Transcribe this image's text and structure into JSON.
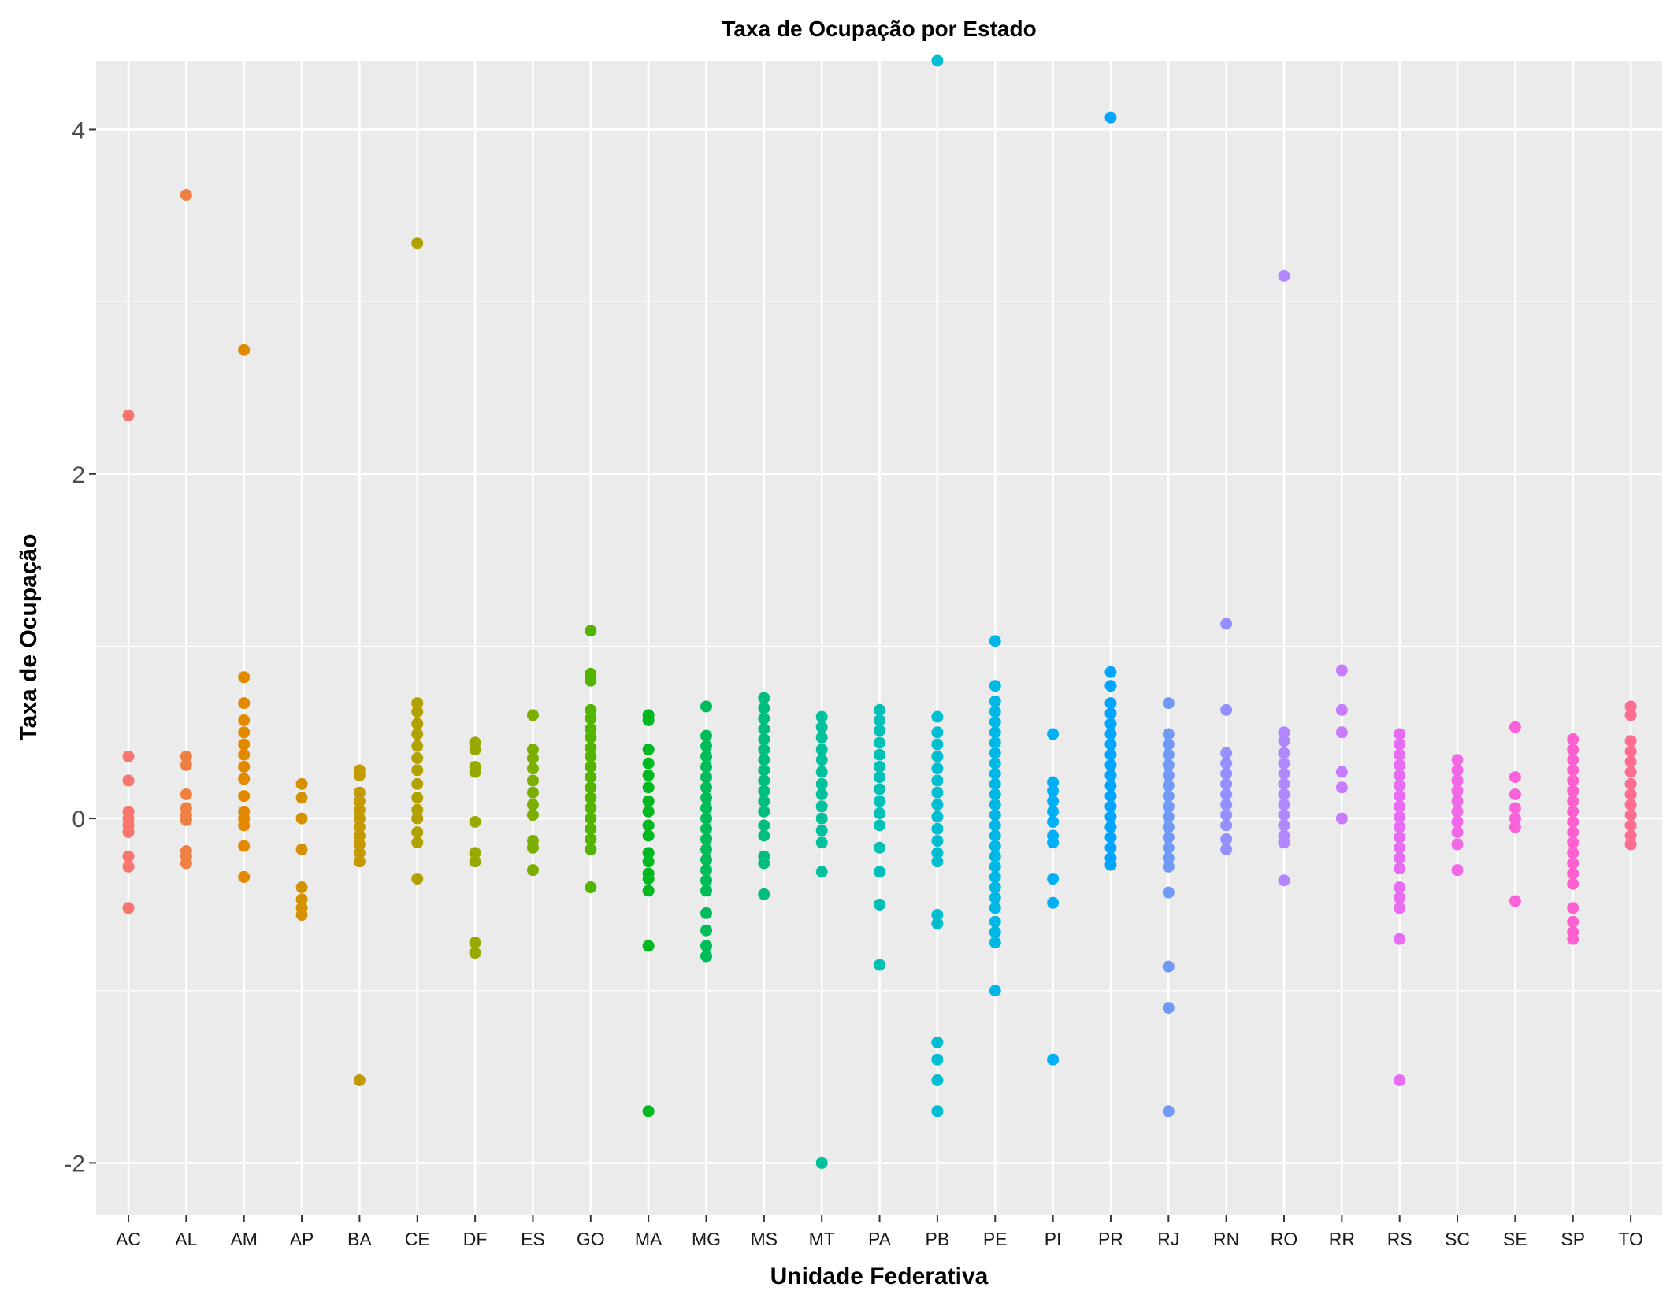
{
  "chart_data": {
    "type": "scatter",
    "title": "Taxa de Ocupação por Estado",
    "xlabel": "Unidade Federativa",
    "ylabel": "Taxa de Ocupação",
    "ylim": [
      -2.3,
      4.4
    ],
    "yticks": [
      -2,
      0,
      2,
      4
    ],
    "grid": true,
    "legend": "none",
    "background": "#ebebeb",
    "gridline_color": "#ffffff",
    "categories": [
      "AC",
      "AL",
      "AM",
      "AP",
      "BA",
      "CE",
      "DF",
      "ES",
      "GO",
      "MA",
      "MG",
      "MS",
      "MT",
      "PA",
      "PB",
      "PE",
      "PI",
      "PR",
      "RJ",
      "RN",
      "RO",
      "RR",
      "RS",
      "SC",
      "SE",
      "SP",
      "TO"
    ],
    "series": [
      {
        "category": "AC",
        "color": "#F8766D",
        "y": [
          2.34,
          0.36,
          0.22,
          0.04,
          0.0,
          -0.04,
          -0.08,
          -0.22,
          -0.28,
          -0.52
        ]
      },
      {
        "category": "AL",
        "color": "#EE8043",
        "y": [
          3.62,
          0.36,
          0.31,
          0.14,
          0.06,
          0.02,
          -0.01,
          -0.19,
          -0.22,
          -0.26
        ]
      },
      {
        "category": "AM",
        "color": "#E38900",
        "y": [
          2.72,
          0.82,
          0.67,
          0.57,
          0.5,
          0.43,
          0.37,
          0.3,
          0.23,
          0.13,
          0.04,
          0.0,
          -0.04,
          -0.16,
          -0.34
        ]
      },
      {
        "category": "AP",
        "color": "#D59100",
        "y": [
          0.2,
          0.12,
          0.0,
          -0.18,
          -0.4,
          -0.47,
          -0.52,
          -0.56
        ]
      },
      {
        "category": "BA",
        "color": "#C49A00",
        "y": [
          0.28,
          0.25,
          0.15,
          0.1,
          0.05,
          0.0,
          -0.05,
          -0.1,
          -0.15,
          -0.2,
          -0.25,
          -1.52
        ]
      },
      {
        "category": "CE",
        "color": "#B0A100",
        "y": [
          3.34,
          0.67,
          0.62,
          0.55,
          0.49,
          0.42,
          0.35,
          0.28,
          0.2,
          0.12,
          0.05,
          0.0,
          -0.08,
          -0.14,
          -0.35
        ]
      },
      {
        "category": "DF",
        "color": "#99A800",
        "y": [
          0.44,
          0.4,
          0.3,
          0.27,
          -0.02,
          -0.2,
          -0.25,
          -0.72,
          -0.78
        ]
      },
      {
        "category": "ES",
        "color": "#7CAE00",
        "y": [
          0.6,
          0.4,
          0.35,
          0.29,
          0.22,
          0.15,
          0.08,
          0.02,
          -0.13,
          -0.17,
          -0.3
        ]
      },
      {
        "category": "GO",
        "color": "#53B400",
        "y": [
          1.09,
          0.84,
          0.8,
          0.63,
          0.58,
          0.52,
          0.47,
          0.41,
          0.36,
          0.3,
          0.24,
          0.18,
          0.12,
          0.06,
          0.0,
          -0.06,
          -0.12,
          -0.18,
          -0.4
        ]
      },
      {
        "category": "MA",
        "color": "#00B81F",
        "y": [
          0.6,
          0.57,
          0.4,
          0.32,
          0.25,
          0.18,
          0.1,
          0.04,
          -0.04,
          -0.1,
          -0.2,
          -0.25,
          -0.32,
          -0.35,
          -0.42,
          -0.74,
          -1.7
        ]
      },
      {
        "category": "MG",
        "color": "#00BC59",
        "y": [
          0.65,
          0.48,
          0.42,
          0.36,
          0.3,
          0.24,
          0.18,
          0.12,
          0.06,
          0.0,
          -0.06,
          -0.12,
          -0.18,
          -0.24,
          -0.3,
          -0.36,
          -0.42,
          -0.55,
          -0.65,
          -0.74,
          -0.8
        ]
      },
      {
        "category": "MS",
        "color": "#00BF7D",
        "y": [
          0.7,
          0.64,
          0.58,
          0.52,
          0.46,
          0.4,
          0.34,
          0.28,
          0.22,
          0.16,
          0.1,
          0.04,
          -0.04,
          -0.1,
          -0.22,
          -0.26,
          -0.44
        ]
      },
      {
        "category": "MT",
        "color": "#00C19C",
        "y": [
          0.59,
          0.53,
          0.47,
          0.4,
          0.34,
          0.27,
          0.2,
          0.14,
          0.07,
          0.0,
          -0.07,
          -0.14,
          -0.31,
          -2.0
        ]
      },
      {
        "category": "PA",
        "color": "#00C0B8",
        "y": [
          0.63,
          0.57,
          0.51,
          0.44,
          0.37,
          0.3,
          0.24,
          0.17,
          0.1,
          0.03,
          -0.04,
          -0.17,
          -0.31,
          -0.5,
          -0.85
        ]
      },
      {
        "category": "PB",
        "color": "#00BDD0",
        "y": [
          4.4,
          0.59,
          0.5,
          0.43,
          0.36,
          0.29,
          0.22,
          0.15,
          0.08,
          0.01,
          -0.06,
          -0.13,
          -0.2,
          -0.25,
          -0.56,
          -0.61,
          -1.3,
          -1.4,
          -1.52,
          -1.7
        ]
      },
      {
        "category": "PE",
        "color": "#00B8E5",
        "y": [
          1.03,
          0.77,
          0.68,
          0.62,
          0.56,
          0.5,
          0.44,
          0.38,
          0.32,
          0.26,
          0.2,
          0.14,
          0.08,
          0.02,
          -0.04,
          -0.1,
          -0.16,
          -0.22,
          -0.28,
          -0.34,
          -0.4,
          -0.46,
          -0.52,
          -0.6,
          -0.66,
          -0.72,
          -1.0
        ]
      },
      {
        "category": "PI",
        "color": "#00B0F6",
        "y": [
          0.49,
          0.21,
          0.16,
          0.1,
          0.04,
          -0.02,
          -0.1,
          -0.14,
          -0.35,
          -0.49,
          -1.4
        ]
      },
      {
        "category": "PR",
        "color": "#00A5FF",
        "y": [
          4.07,
          0.85,
          0.77,
          0.67,
          0.61,
          0.55,
          0.49,
          0.43,
          0.37,
          0.31,
          0.25,
          0.19,
          0.13,
          0.07,
          0.01,
          -0.05,
          -0.11,
          -0.17,
          -0.23,
          -0.27
        ]
      },
      {
        "category": "RJ",
        "color": "#7099F8",
        "y": [
          0.67,
          0.49,
          0.43,
          0.37,
          0.31,
          0.25,
          0.19,
          0.13,
          0.07,
          0.01,
          -0.05,
          -0.11,
          -0.17,
          -0.23,
          -0.28,
          -0.43,
          -0.86,
          -1.1,
          -1.7
        ]
      },
      {
        "category": "RN",
        "color": "#9590FF",
        "y": [
          1.13,
          0.63,
          0.38,
          0.32,
          0.26,
          0.2,
          0.14,
          0.08,
          0.02,
          -0.04,
          -0.12,
          -0.18
        ]
      },
      {
        "category": "RO",
        "color": "#B186FF",
        "y": [
          3.15,
          0.5,
          0.45,
          0.38,
          0.32,
          0.26,
          0.2,
          0.14,
          0.08,
          0.02,
          -0.04,
          -0.1,
          -0.14,
          -0.36
        ]
      },
      {
        "category": "RR",
        "color": "#C77CFF",
        "y": [
          0.86,
          0.63,
          0.5,
          0.27,
          0.18,
          0.0
        ]
      },
      {
        "category": "RS",
        "color": "#E76BF3",
        "y": [
          0.49,
          0.43,
          0.37,
          0.31,
          0.25,
          0.19,
          0.13,
          0.07,
          0.01,
          -0.05,
          -0.11,
          -0.17,
          -0.23,
          -0.29,
          -0.4,
          -0.46,
          -0.52,
          -0.7,
          -1.52
        ]
      },
      {
        "category": "SC",
        "color": "#F269E7",
        "y": [
          0.34,
          0.28,
          0.22,
          0.16,
          0.1,
          0.04,
          -0.02,
          -0.08,
          -0.15,
          -0.3
        ]
      },
      {
        "category": "SE",
        "color": "#FA62DB",
        "y": [
          0.53,
          0.24,
          0.14,
          0.06,
          0.0,
          -0.05,
          -0.48
        ]
      },
      {
        "category": "SP",
        "color": "#FE61CF",
        "y": [
          0.46,
          0.4,
          0.34,
          0.28,
          0.22,
          0.16,
          0.1,
          0.04,
          -0.02,
          -0.08,
          -0.14,
          -0.2,
          -0.26,
          -0.32,
          -0.38,
          -0.52,
          -0.6,
          -0.66,
          -0.7
        ]
      },
      {
        "category": "TO",
        "color": "#FF6C91",
        "y": [
          0.65,
          0.6,
          0.45,
          0.39,
          0.33,
          0.27,
          0.2,
          0.14,
          0.08,
          0.02,
          -0.04,
          -0.1,
          -0.15
        ]
      }
    ]
  }
}
